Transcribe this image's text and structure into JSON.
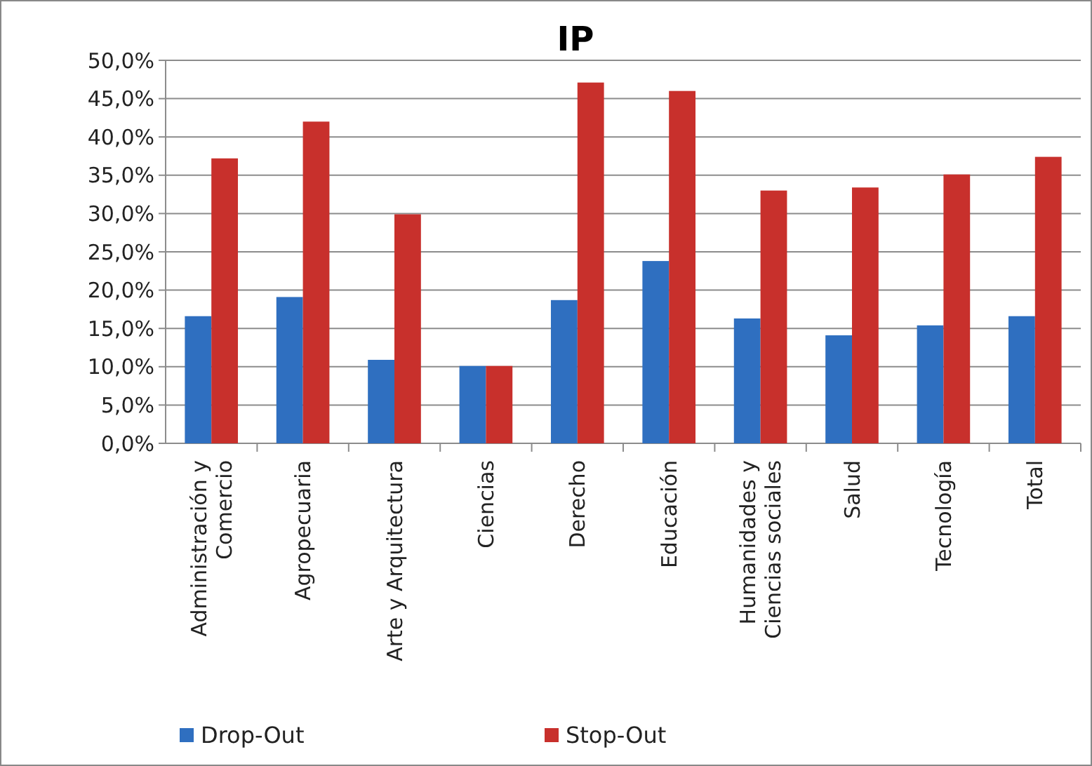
{
  "chart_data": {
    "type": "bar",
    "title": "IP",
    "categories": [
      "Administración y Comercio",
      "Agropecuaria",
      "Arte y Arquitectura",
      "Ciencias",
      "Derecho",
      "Educación",
      "Humanidades y Ciencias sociales",
      "Salud",
      "Tecnología",
      "Total"
    ],
    "series": [
      {
        "name": "Drop-Out",
        "color": "#2f6fc0",
        "values": [
          16.6,
          19.1,
          10.9,
          10.1,
          18.7,
          23.8,
          16.3,
          14.1,
          15.4,
          16.6
        ]
      },
      {
        "name": "Stop-Out",
        "color": "#c8302c",
        "values": [
          37.2,
          42.0,
          29.9,
          10.1,
          47.1,
          46.0,
          33.0,
          33.4,
          35.1,
          37.4
        ]
      }
    ],
    "ylim": [
      0,
      50
    ],
    "yticks": [
      {
        "value": 0,
        "label": "0,0%"
      },
      {
        "value": 5,
        "label": "5,0%"
      },
      {
        "value": 10,
        "label": "10,0%"
      },
      {
        "value": 15,
        "label": "15,0%"
      },
      {
        "value": 20,
        "label": "20,0%"
      },
      {
        "value": 25,
        "label": "25,0%"
      },
      {
        "value": 30,
        "label": "30,0%"
      },
      {
        "value": 35,
        "label": "35,0%"
      },
      {
        "value": 40,
        "label": "40,0%"
      },
      {
        "value": 45,
        "label": "45,0%"
      },
      {
        "value": 50,
        "label": "50,0%"
      }
    ],
    "grid": "y",
    "legend": "bottom"
  }
}
